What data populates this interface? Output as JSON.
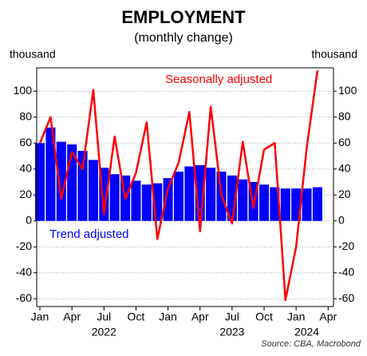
{
  "chart_data": {
    "type": "bar-line",
    "title": "EMPLOYMENT",
    "subtitle": "(monthly change)",
    "y_label_left": "thousand",
    "y_label_right": "thousand",
    "source": "Source: CBA, Macrobond",
    "x": [
      0,
      1,
      2,
      3,
      4,
      5,
      6,
      7,
      8,
      9,
      10,
      11,
      12,
      13,
      14,
      15,
      16,
      17,
      18,
      19,
      20,
      21,
      22,
      23,
      24,
      25,
      26
    ],
    "xlim": [
      -0.3,
      27.5
    ],
    "xticks": [
      {
        "value": 0,
        "label": "Jan"
      },
      {
        "value": 3,
        "label": "Apr"
      },
      {
        "value": 6,
        "label": "Jul"
      },
      {
        "value": 9,
        "label": "Oct"
      },
      {
        "value": 12,
        "label": "Jan"
      },
      {
        "value": 15,
        "label": "Apr"
      },
      {
        "value": 18,
        "label": "Jul"
      },
      {
        "value": 21,
        "label": "Oct"
      },
      {
        "value": 24,
        "label": "Jan"
      },
      {
        "value": 27,
        "label": "Apr"
      }
    ],
    "year_labels": [
      {
        "value": 6,
        "label": "2022"
      },
      {
        "value": 18,
        "label": "2023"
      },
      {
        "value": 25,
        "label": "2024"
      }
    ],
    "series": [
      {
        "name": "Trend adjusted",
        "type": "bar",
        "color": "#0000ff",
        "values": [
          60,
          72,
          61,
          59,
          54,
          47,
          41,
          36,
          35,
          31,
          28,
          29,
          33,
          38,
          42,
          43,
          41,
          38,
          35,
          32,
          30,
          28,
          26,
          25,
          25,
          25,
          26
        ]
      },
      {
        "name": "Seasonally adjusted",
        "type": "line",
        "color": "#ff0000",
        "values": [
          60,
          80,
          17,
          53,
          40,
          101,
          5,
          65,
          17,
          37,
          76,
          -14,
          25,
          45,
          84,
          -8,
          88,
          20,
          -2,
          61,
          10,
          55,
          60,
          -61,
          -20,
          57,
          116
        ]
      }
    ],
    "ylim": [
      -66,
      118
    ],
    "yticks": [
      -60,
      -40,
      -20,
      0,
      20,
      40,
      60,
      80,
      100
    ],
    "grid": true
  }
}
